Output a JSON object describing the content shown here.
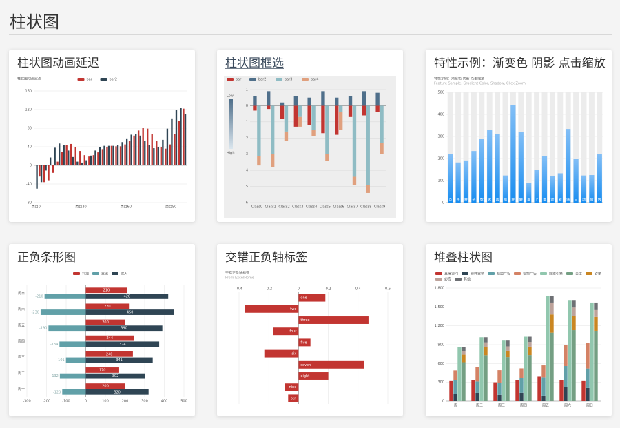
{
  "header": {
    "title": "柱状图"
  },
  "cards": [
    {
      "title": "柱状图动画延迟"
    },
    {
      "title": "柱状图框选"
    },
    {
      "title": "特性示例：渐变色 阴影 点击缩放"
    },
    {
      "title": "正负条形图"
    },
    {
      "title": "交错正负轴标签"
    },
    {
      "title": "堆叠柱状图"
    }
  ],
  "chart_data": [
    {
      "type": "bar",
      "title": "柱状图动画延迟",
      "legend": "top-center",
      "grid": true,
      "categories": [
        "类目0",
        null,
        null,
        null,
        null,
        null,
        null,
        null,
        null,
        null,
        "类目30",
        null,
        null,
        null,
        null,
        null,
        null,
        null,
        null,
        null,
        "类目60",
        null,
        null,
        null,
        null,
        null,
        null,
        null,
        null,
        null,
        "类目90",
        null,
        null,
        null
      ],
      "series": [
        {
          "name": "bar",
          "color": "#c23531",
          "values": [
            0,
            -24,
            -36,
            -32,
            -16,
            8,
            29,
            43,
            46,
            40,
            31,
            22,
            19,
            22,
            28,
            35,
            40,
            42,
            41,
            41,
            45,
            53,
            64,
            75,
            81,
            79,
            68,
            52,
            40,
            36,
            45,
            67,
            96,
            122
          ]
        },
        {
          "name": "bar2",
          "color": "#2f4554",
          "values": [
            -50,
            -36,
            -11,
            17,
            38,
            47,
            44,
            32,
            18,
            8,
            6,
            11,
            21,
            32,
            39,
            42,
            42,
            42,
            44,
            50,
            58,
            66,
            68,
            64,
            53,
            43,
            37,
            40,
            55,
            79,
            101,
            119,
            123,
            111
          ]
        }
      ],
      "ylim": [
        -80,
        160
      ],
      "yticks": [
        -80,
        -40,
        0,
        40,
        80,
        120,
        160
      ]
    },
    {
      "type": "bar",
      "legend": "top-left",
      "grid": true,
      "background": "#eeeeee",
      "inverse": true,
      "visual_map": {
        "low": "Low",
        "high": "High"
      },
      "categories": [
        "Class0",
        "Class1",
        "Class2",
        "Class3",
        "Class4",
        "Class5",
        "Class6",
        "Class7",
        "Class8",
        "Class9"
      ],
      "series": [
        {
          "name": "bar",
          "color": "#c23531",
          "stack": "one",
          "values": [
            0.3,
            0.2,
            0.8,
            1.3,
            1.2,
            1.7,
            1.8,
            0.7,
            0.6,
            0.4
          ]
        },
        {
          "name": "bar2",
          "color": "#4f6f8a",
          "stack": "one",
          "values": [
            -0.6,
            -0.9,
            -0.2,
            -0.6,
            -0.5,
            -0.9,
            -0.5,
            -0.6,
            -0.9,
            -0.8
          ]
        },
        {
          "name": "bar3",
          "color": "#8fbcc4",
          "stack": "two",
          "values": [
            3.1,
            3.0,
            1.6,
            0.7,
            1.5,
            3.0,
            0.4,
            4.4,
            4.9,
            2.3
          ]
        },
        {
          "name": "bar4",
          "color": "#e0a07e",
          "stack": "two",
          "values": [
            0.6,
            0.8,
            0.6,
            0.6,
            0.4,
            0.4,
            1.1,
            0.5,
            0.5,
            0.7
          ]
        }
      ],
      "ylim": [
        -1,
        6
      ],
      "yticks": [
        -1,
        0,
        1,
        2,
        3,
        4,
        5,
        6
      ]
    },
    {
      "type": "bar",
      "title": "特性示例：渐变色 阴影 点击缩放",
      "subtitle": "Feature Sample: Gradient Color, Shadow, Click Zoom",
      "grid": true,
      "shadow": true,
      "category_labels": "inside-bottom",
      "categories": [
        "点",
        "击",
        "柱",
        "子",
        "或",
        "者",
        "两",
        "指",
        "在",
        "触",
        "屏",
        "上",
        "滑",
        "动",
        "能",
        "够",
        "自",
        "动",
        "缩",
        "放"
      ],
      "series": [
        {
          "color": "#188df0",
          "gradient": [
            "#83bff6",
            "#188df0"
          ],
          "values": [
            220,
            182,
            191,
            234,
            290,
            330,
            310,
            123,
            442,
            321,
            90,
            149,
            210,
            122,
            133,
            334,
            198,
            123,
            125,
            220
          ]
        }
      ],
      "ylim": [
        0,
        500
      ],
      "yticks": [
        0,
        100,
        200,
        300,
        400,
        500
      ]
    },
    {
      "type": "bar",
      "orientation": "horizontal",
      "legend": "top-center",
      "grid": true,
      "categories": [
        "周一",
        "周二",
        "周三",
        "周四",
        "周五",
        "周六",
        "周日"
      ],
      "series": [
        {
          "name": "利润",
          "color": "#c23531",
          "label": "inside",
          "values": [
            200,
            170,
            240,
            244,
            200,
            220,
            210
          ]
        },
        {
          "name": "支出",
          "color": "#61a0a8",
          "stack": "total",
          "label": "left",
          "values": [
            -120,
            -132,
            -101,
            -134,
            -190,
            -230,
            -210
          ]
        },
        {
          "name": "收入",
          "color": "#2f4554",
          "stack": "total",
          "label": "inside",
          "values": [
            320,
            302,
            341,
            374,
            390,
            450,
            420
          ]
        }
      ],
      "xlim": [
        -300,
        500
      ],
      "xticks": [
        -300,
        -200,
        -100,
        0,
        100,
        200,
        300,
        400,
        500
      ]
    },
    {
      "type": "bar",
      "orientation": "horizontal",
      "title": "交错正负轴标签",
      "subtitle": "From ExcelHome",
      "grid": true,
      "x_axis_position": "top",
      "bar_label": "category",
      "categories": [
        "ten",
        "nine",
        "eight",
        "seven",
        "six",
        "five",
        "four",
        "three",
        "two",
        "one"
      ],
      "series": [
        {
          "color": "#c23531",
          "values": [
            -0.07,
            -0.09,
            0.2,
            0.44,
            -0.23,
            0.08,
            -0.17,
            0.47,
            -0.36,
            0.18
          ]
        }
      ],
      "xlim": [
        -0.4,
        0.6
      ],
      "xticks": [
        -0.4,
        -0.2,
        0,
        0.2,
        0.4,
        0.6
      ]
    },
    {
      "type": "bar",
      "legend": "top-left",
      "grid": true,
      "categories": [
        "周一",
        "周二",
        "周三",
        "周四",
        "周五",
        "周六",
        "周日"
      ],
      "series": [
        {
          "name": "直接访问",
          "color": "#c23531",
          "values": [
            320,
            332,
            301,
            334,
            390,
            330,
            320
          ]
        },
        {
          "name": "邮件营销",
          "color": "#2f4554",
          "stack": "ad",
          "values": [
            120,
            132,
            101,
            134,
            90,
            230,
            210
          ]
        },
        {
          "name": "联盟广告",
          "color": "#61a0a8",
          "stack": "ad",
          "values": [
            220,
            182,
            191,
            234,
            290,
            330,
            310
          ]
        },
        {
          "name": "视频广告",
          "color": "#d48265",
          "stack": "ad",
          "values": [
            150,
            232,
            201,
            154,
            190,
            330,
            410
          ]
        },
        {
          "name": "搜索引擎",
          "color": "#91c7ae",
          "values": [
            862,
            1018,
            964,
            1026,
            1679,
            1600,
            1570
          ]
        },
        {
          "name": "百度",
          "color": "#749f83",
          "stack": "search",
          "values": [
            620,
            732,
            701,
            734,
            1090,
            1130,
            1120
          ]
        },
        {
          "name": "谷歌",
          "color": "#ca8622",
          "stack": "search",
          "values": [
            120,
            132,
            101,
            134,
            290,
            230,
            220
          ]
        },
        {
          "name": "必应",
          "color": "#bda29a",
          "stack": "search",
          "values": [
            60,
            72,
            71,
            74,
            190,
            130,
            110
          ]
        },
        {
          "name": "其他",
          "color": "#6e7074",
          "stack": "search",
          "values": [
            62,
            82,
            91,
            84,
            109,
            110,
            120
          ]
        }
      ],
      "ylim": [
        0,
        1800
      ],
      "yticks": [
        0,
        300,
        600,
        900,
        {
          "value": 1200,
          "label": "1,200"
        },
        {
          "value": 1500,
          "label": "1,500"
        },
        {
          "value": 1800,
          "label": "1,800"
        }
      ]
    }
  ]
}
